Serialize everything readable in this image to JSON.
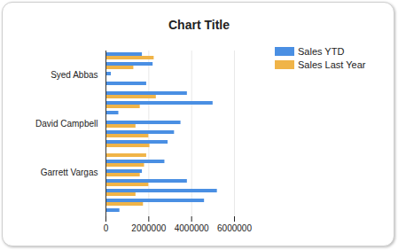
{
  "chart_data": {
    "type": "bar",
    "title": "Chart Title",
    "orientation": "horizontal",
    "categories": [
      null,
      null,
      "Syed Abbas",
      null,
      null,
      null,
      null,
      "David Campbell",
      null,
      null,
      null,
      null,
      "Garrett Vargas",
      null,
      null,
      null,
      null
    ],
    "series": [
      {
        "name": "Sales YTD",
        "color": "#4a8fe3",
        "values": [
          1700000,
          2200000,
          250000,
          1900000,
          3800000,
          5000000,
          600000,
          3500000,
          3200000,
          2900000,
          0,
          2750000,
          1700000,
          3800000,
          5200000,
          4600000,
          650000
        ]
      },
      {
        "name": "Sales Last Year",
        "color": "#f0b448",
        "values": [
          2250000,
          1300000,
          0,
          0,
          2350000,
          1600000,
          0,
          1400000,
          2000000,
          2050000,
          1900000,
          1800000,
          1600000,
          2000000,
          1400000,
          1750000,
          0
        ]
      }
    ],
    "xlim": [
      0,
      6000000
    ],
    "xticks": [
      0,
      2000000,
      4000000,
      6000000
    ],
    "grid": true,
    "legend": "top-right"
  }
}
